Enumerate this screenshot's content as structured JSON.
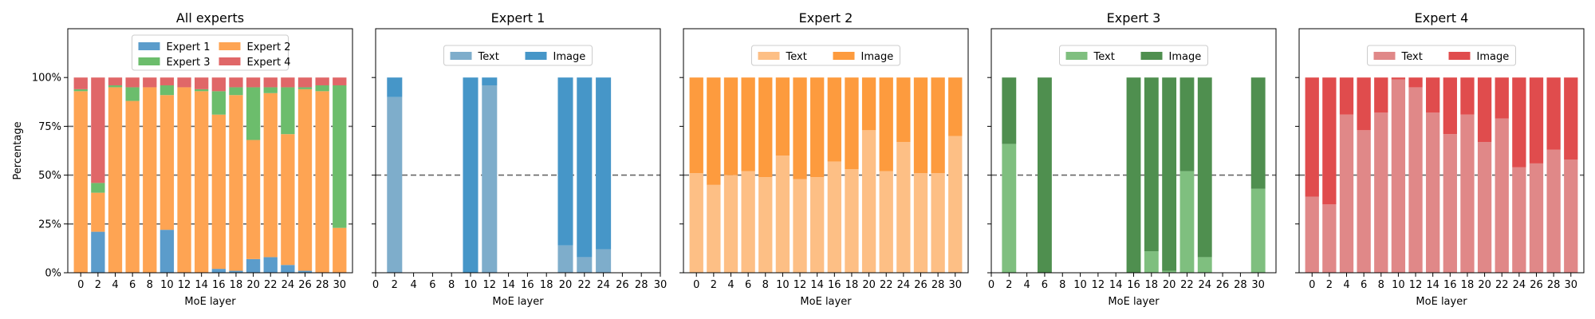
{
  "figure": {
    "layout": "1x5 subplots",
    "background": "#ffffff"
  },
  "chart_data": [
    {
      "type": "bar",
      "stacked": true,
      "title": "All experts",
      "xlabel": "MoE layer",
      "ylabel": "Percentage",
      "xlim": [
        -1.5,
        31.5
      ],
      "ylim": [
        0,
        1.25
      ],
      "x_ticks": [
        "0",
        "2",
        "4",
        "6",
        "8",
        "10",
        "12",
        "14",
        "16",
        "18",
        "20",
        "22",
        "24",
        "26",
        "28",
        "30"
      ],
      "y_ticks": [
        "0%",
        "25%",
        "50%",
        "75%",
        "100%"
      ],
      "y_tick_values": [
        0,
        0.25,
        0.5,
        0.75,
        1.0
      ],
      "hlines": [
        0.25,
        0.5,
        0.75
      ],
      "grid": false,
      "legend": {
        "placement": "top-center",
        "columns": 2
      },
      "x": [
        0,
        2,
        4,
        6,
        8,
        10,
        12,
        14,
        16,
        18,
        20,
        22,
        24,
        26,
        28,
        30
      ],
      "series": [
        {
          "name": "Expert 1",
          "color": "#5b9ccb",
          "values": [
            0.0,
            0.21,
            0.0,
            0.0,
            0.0,
            0.22,
            0.0,
            0.0,
            0.02,
            0.01,
            0.07,
            0.08,
            0.04,
            0.01,
            0.0,
            0.0
          ]
        },
        {
          "name": "Expert 2",
          "color": "#fea453",
          "values": [
            0.93,
            0.2,
            0.95,
            0.88,
            0.95,
            0.69,
            0.95,
            0.93,
            0.79,
            0.9,
            0.61,
            0.84,
            0.67,
            0.93,
            0.93,
            0.23
          ]
        },
        {
          "name": "Expert 3",
          "color": "#6cbd6c",
          "values": [
            0.01,
            0.05,
            0.01,
            0.07,
            0.0,
            0.05,
            0.0,
            0.01,
            0.12,
            0.04,
            0.27,
            0.03,
            0.24,
            0.01,
            0.03,
            0.73
          ]
        },
        {
          "name": "Expert 4",
          "color": "#e06768",
          "values": [
            0.06,
            0.54,
            0.04,
            0.05,
            0.05,
            0.04,
            0.05,
            0.06,
            0.07,
            0.05,
            0.05,
            0.05,
            0.05,
            0.05,
            0.04,
            0.04
          ]
        }
      ]
    },
    {
      "type": "bar",
      "stacked": true,
      "title": "Expert 1",
      "xlabel": "MoE layer",
      "ylabel": "",
      "xlim": [
        0,
        30
      ],
      "ylim": [
        0,
        1.25
      ],
      "x_ticks": [
        "0",
        "2",
        "4",
        "6",
        "8",
        "10",
        "12",
        "14",
        "16",
        "18",
        "20",
        "22",
        "24",
        "26",
        "28",
        "30"
      ],
      "hlines": [
        0.5
      ],
      "grid": false,
      "legend": {
        "placement": "top-center",
        "columns": 2
      },
      "x": [
        2,
        10,
        12,
        20,
        22,
        24
      ],
      "series": [
        {
          "name": "Text",
          "color": "#7eadcb",
          "values": [
            0.9,
            0.0,
            0.96,
            0.14,
            0.08,
            0.12
          ]
        },
        {
          "name": "Image",
          "color": "#4696c8",
          "values": [
            0.1,
            1.0,
            0.04,
            0.86,
            0.92,
            0.88
          ]
        }
      ]
    },
    {
      "type": "bar",
      "stacked": true,
      "title": "Expert 2",
      "xlabel": "MoE layer",
      "ylabel": "",
      "xlim": [
        -1.5,
        31.5
      ],
      "ylim": [
        0,
        1.25
      ],
      "x_ticks": [
        "0",
        "2",
        "4",
        "6",
        "8",
        "10",
        "12",
        "14",
        "16",
        "18",
        "20",
        "22",
        "24",
        "26",
        "28",
        "30"
      ],
      "hlines": [
        0.5
      ],
      "grid": false,
      "legend": {
        "placement": "top-center",
        "columns": 2
      },
      "x": [
        0,
        2,
        4,
        6,
        8,
        10,
        12,
        14,
        16,
        18,
        20,
        22,
        24,
        26,
        28,
        30
      ],
      "series": [
        {
          "name": "Text",
          "color": "#fdbf85",
          "values": [
            0.51,
            0.45,
            0.5,
            0.52,
            0.49,
            0.6,
            0.48,
            0.49,
            0.57,
            0.53,
            0.73,
            0.52,
            0.67,
            0.51,
            0.51,
            0.7
          ]
        },
        {
          "name": "Image",
          "color": "#fd9b3e",
          "values": [
            0.49,
            0.55,
            0.5,
            0.48,
            0.51,
            0.4,
            0.52,
            0.51,
            0.43,
            0.47,
            0.27,
            0.48,
            0.33,
            0.49,
            0.49,
            0.3
          ]
        }
      ]
    },
    {
      "type": "bar",
      "stacked": true,
      "title": "Expert 3",
      "xlabel": "MoE layer",
      "ylabel": "",
      "xlim": [
        0,
        32
      ],
      "ylim": [
        0,
        1.25
      ],
      "x_ticks": [
        "0",
        "2",
        "4",
        "6",
        "8",
        "10",
        "12",
        "14",
        "16",
        "18",
        "20",
        "22",
        "24",
        "26",
        "28",
        "30"
      ],
      "hlines": [
        0.5
      ],
      "grid": false,
      "legend": {
        "placement": "top-center",
        "columns": 2
      },
      "x": [
        2,
        6,
        16,
        18,
        20,
        22,
        24,
        30
      ],
      "series": [
        {
          "name": "Text",
          "color": "#7fbf7f",
          "values": [
            0.66,
            0.0,
            0.0,
            0.11,
            0.01,
            0.52,
            0.08,
            0.43
          ]
        },
        {
          "name": "Image",
          "color": "#4f8f4f",
          "values": [
            0.34,
            1.0,
            1.0,
            0.89,
            0.99,
            0.48,
            0.92,
            0.57
          ]
        }
      ]
    },
    {
      "type": "bar",
      "stacked": true,
      "title": "Expert 4",
      "xlabel": "MoE layer",
      "ylabel": "",
      "xlim": [
        -1.5,
        31.5
      ],
      "ylim": [
        0,
        1.25
      ],
      "x_ticks": [
        "0",
        "2",
        "4",
        "6",
        "8",
        "10",
        "12",
        "14",
        "16",
        "18",
        "20",
        "22",
        "24",
        "26",
        "28",
        "30"
      ],
      "hlines": [
        0.5
      ],
      "grid": false,
      "legend": {
        "placement": "top-center",
        "columns": 2
      },
      "x": [
        0,
        2,
        4,
        6,
        8,
        10,
        12,
        14,
        16,
        18,
        20,
        22,
        24,
        26,
        28,
        30
      ],
      "series": [
        {
          "name": "Text",
          "color": "#e08888",
          "values": [
            0.39,
            0.35,
            0.81,
            0.73,
            0.82,
            0.99,
            0.95,
            0.82,
            0.71,
            0.81,
            0.67,
            0.79,
            0.54,
            0.56,
            0.63,
            0.58
          ]
        },
        {
          "name": "Image",
          "color": "#e04c4d",
          "values": [
            0.61,
            0.65,
            0.19,
            0.27,
            0.18,
            0.01,
            0.05,
            0.18,
            0.29,
            0.19,
            0.33,
            0.21,
            0.46,
            0.44,
            0.37,
            0.42
          ]
        }
      ]
    }
  ]
}
